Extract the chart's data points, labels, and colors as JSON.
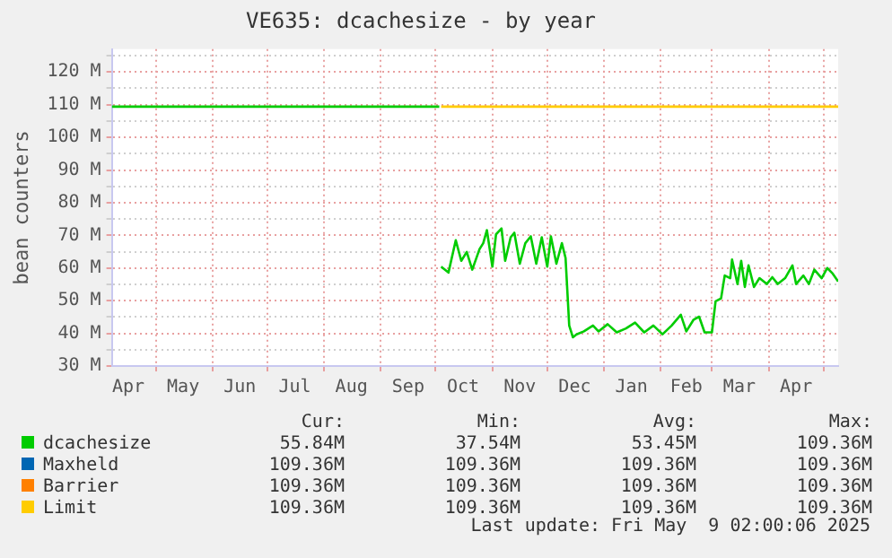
{
  "chart_data": {
    "type": "line",
    "title": "VE635: dcachesize - by year",
    "ylabel": "bean counters",
    "xlim": [
      "2024-04-07",
      "2025-05-09"
    ],
    "ylim": [
      30,
      127
    ],
    "yticks": [
      {
        "value": 30,
        "label": "30 M"
      },
      {
        "value": 35,
        "label": null
      },
      {
        "value": 40,
        "label": "40 M"
      },
      {
        "value": 45,
        "label": null
      },
      {
        "value": 50,
        "label": "50 M"
      },
      {
        "value": 55,
        "label": null
      },
      {
        "value": 60,
        "label": "60 M"
      },
      {
        "value": 65,
        "label": null
      },
      {
        "value": 70,
        "label": "70 M"
      },
      {
        "value": 75,
        "label": null
      },
      {
        "value": 80,
        "label": "80 M"
      },
      {
        "value": 85,
        "label": null
      },
      {
        "value": 90,
        "label": "90 M"
      },
      {
        "value": 95,
        "label": null
      },
      {
        "value": 100,
        "label": "100 M"
      },
      {
        "value": 105,
        "label": null
      },
      {
        "value": 110,
        "label": "110 M"
      },
      {
        "value": 115,
        "label": null
      },
      {
        "value": 120,
        "label": "120 M"
      },
      {
        "value": 125,
        "label": null
      }
    ],
    "xticks": [
      {
        "value": "2024-04-16",
        "label": "Apr"
      },
      {
        "value": "2024-05-01",
        "label": null
      },
      {
        "value": "2024-05-16",
        "label": "May"
      },
      {
        "value": "2024-06-01",
        "label": null
      },
      {
        "value": "2024-06-16",
        "label": "Jun"
      },
      {
        "value": "2024-07-01",
        "label": null
      },
      {
        "value": "2024-07-16",
        "label": "Jul"
      },
      {
        "value": "2024-08-01",
        "label": null
      },
      {
        "value": "2024-08-16",
        "label": "Aug"
      },
      {
        "value": "2024-09-01",
        "label": null
      },
      {
        "value": "2024-09-16",
        "label": "Sep"
      },
      {
        "value": "2024-10-01",
        "label": null
      },
      {
        "value": "2024-10-16",
        "label": "Oct"
      },
      {
        "value": "2024-11-01",
        "label": null
      },
      {
        "value": "2024-11-16",
        "label": "Nov"
      },
      {
        "value": "2024-12-01",
        "label": null
      },
      {
        "value": "2024-12-16",
        "label": "Dec"
      },
      {
        "value": "2025-01-01",
        "label": null
      },
      {
        "value": "2025-01-16",
        "label": "Jan"
      },
      {
        "value": "2025-02-01",
        "label": null
      },
      {
        "value": "2025-02-15",
        "label": "Feb"
      },
      {
        "value": "2025-03-01",
        "label": null
      },
      {
        "value": "2025-03-16",
        "label": "Mar"
      },
      {
        "value": "2025-04-01",
        "label": null
      },
      {
        "value": "2025-04-16",
        "label": "Apr"
      },
      {
        "value": "2025-05-01",
        "label": null
      }
    ],
    "grid": true,
    "legend": "bottom",
    "marker": "none",
    "line_style": "solid",
    "series": [
      {
        "name": "Limit",
        "color": "#ffcc00",
        "x": [
          "2024-10-04",
          "2025-05-09"
        ],
        "values": [
          109.4,
          109.4
        ]
      },
      {
        "name": "Barrier",
        "color": "#ff8000"
      },
      {
        "name": "Maxheld",
        "color": "#0066b3"
      },
      {
        "name": "dcachesize",
        "color": "#00cc00",
        "x": [
          "2024-04-07",
          "2024-10-03",
          "2024-10-03T12:00",
          "2024-10-04",
          "2024-10-08",
          "2024-10-12",
          "2024-10-15",
          "2024-10-18",
          "2024-10-21",
          "2024-10-25",
          "2024-10-27",
          "2024-10-29",
          "2024-11-01",
          "2024-11-03",
          "2024-11-06",
          "2024-11-08",
          "2024-11-11",
          "2024-11-13",
          "2024-11-16",
          "2024-11-19",
          "2024-11-22",
          "2024-11-25",
          "2024-11-28",
          "2024-12-01",
          "2024-12-03",
          "2024-12-06",
          "2024-12-09",
          "2024-12-11",
          "2024-12-13",
          "2024-12-15",
          "2024-12-17",
          "2024-12-21",
          "2024-12-26",
          "2024-12-29",
          "2025-01-03",
          "2025-01-08",
          "2025-01-13",
          "2025-01-18",
          "2025-01-23",
          "2025-01-28",
          "2025-02-02",
          "2025-02-07",
          "2025-02-12",
          "2025-02-15",
          "2025-02-19",
          "2025-02-22",
          "2025-02-25",
          "2025-03-01",
          "2025-03-03",
          "2025-03-06",
          "2025-03-08",
          "2025-03-11",
          "2025-03-12",
          "2025-03-15",
          "2025-03-17",
          "2025-03-19",
          "2025-03-21",
          "2025-03-24",
          "2025-03-27",
          "2025-03-31",
          "2025-04-03",
          "2025-04-06",
          "2025-04-10",
          "2025-04-14",
          "2025-04-16",
          "2025-04-20",
          "2025-04-23",
          "2025-04-26",
          "2025-04-30",
          "2025-05-03",
          "2025-05-06",
          "2025-05-09"
        ],
        "values": [
          109.4,
          109.4,
          null,
          60.4,
          58.6,
          68.5,
          62.2,
          64.9,
          59.5,
          65.8,
          67.6,
          71.6,
          60.4,
          70.3,
          72.1,
          62.2,
          69.4,
          70.8,
          61.3,
          67.6,
          69.7,
          61.3,
          69.4,
          60.4,
          69.7,
          61.3,
          67.6,
          63.1,
          42.4,
          38.8,
          39.7,
          40.6,
          42.4,
          40.6,
          42.8,
          40.3,
          41.5,
          43.3,
          40.3,
          42.4,
          39.7,
          42.4,
          45.7,
          40.6,
          44.2,
          45.1,
          40.3,
          40.3,
          49.8,
          50.7,
          57.7,
          56.9,
          62.6,
          55.1,
          62.2,
          54.2,
          60.8,
          54.2,
          56.9,
          55.1,
          57.2,
          55.1,
          56.9,
          60.8,
          55.1,
          57.7,
          55.1,
          59.5,
          56.9,
          60.0,
          58.3,
          55.9
        ]
      }
    ],
    "annotations": [
      "Cur:",
      "Min:",
      "Avg:",
      "Max:",
      "55.84M",
      "37.54M",
      "53.45M",
      "109.36M",
      "109.36M",
      "109.36M",
      "109.36M",
      "109.36M",
      "109.36M",
      "109.36M",
      "109.36M",
      "109.36M",
      "109.36M",
      "109.36M",
      "109.36M",
      "109.36M",
      "Last update: Fri May  9 02:00:06 2025"
    ]
  }
}
